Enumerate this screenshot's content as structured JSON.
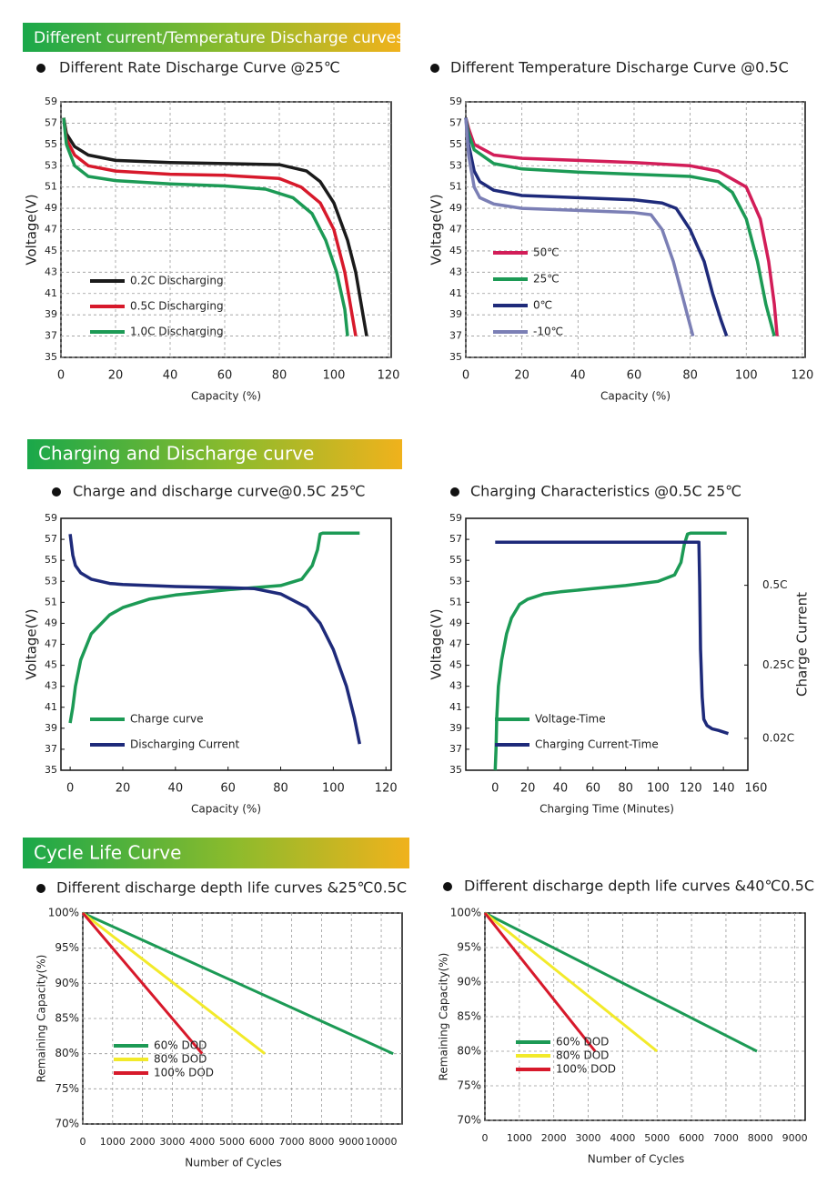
{
  "sections": [
    {
      "title": "Different current/Temperature Discharge curves"
    },
    {
      "title": "Charging and Discharge curve"
    },
    {
      "title": "Cycle Life Curve"
    }
  ],
  "chart_data": [
    {
      "type": "line",
      "title": "Different Rate Discharge Curve @25℃",
      "xlabel": "Capacity  (%)",
      "ylabel": "Voltage(V)",
      "xlim": [
        0,
        121
      ],
      "xticks": [
        0,
        20,
        40,
        60,
        80,
        100,
        120
      ],
      "ylim": [
        35,
        59
      ],
      "yticks": [
        35,
        37,
        39,
        41,
        43,
        45,
        47,
        49,
        51,
        53,
        55,
        57,
        59
      ],
      "grid": true,
      "legend": "lower left",
      "series": [
        {
          "name": "0.2C Discharging",
          "color": "#1a1a1a",
          "x": [
            1,
            2,
            5,
            10,
            20,
            40,
            60,
            80,
            90,
            95,
            100,
            105,
            108,
            110,
            112
          ],
          "values": [
            57.5,
            56,
            54.8,
            54,
            53.5,
            53.3,
            53.2,
            53.1,
            52.5,
            51.5,
            49.5,
            46,
            43,
            40,
            37
          ]
        },
        {
          "name": "0.5C Discharging",
          "color": "#d7192b",
          "x": [
            1,
            2,
            5,
            10,
            20,
            40,
            60,
            80,
            88,
            95,
            100,
            104,
            106,
            108
          ],
          "values": [
            57.5,
            55.5,
            54,
            53,
            52.5,
            52.2,
            52.1,
            51.8,
            51,
            49.5,
            47,
            43,
            40,
            37
          ]
        },
        {
          "name": "1.0C Discharging",
          "color": "#1c9a55",
          "x": [
            1,
            2,
            5,
            10,
            20,
            40,
            60,
            75,
            85,
            92,
            97,
            101,
            104,
            105
          ],
          "values": [
            57.5,
            55,
            53,
            52,
            51.6,
            51.3,
            51.1,
            50.8,
            50,
            48.5,
            46,
            43,
            39.5,
            37
          ]
        }
      ]
    },
    {
      "type": "line",
      "title": "Different Temperature Discharge Curve @0.5C",
      "xlabel": "Capacity  (%)",
      "ylabel": "Voltage(V)",
      "xlim": [
        0,
        121
      ],
      "xticks": [
        0,
        20,
        40,
        60,
        80,
        100,
        120
      ],
      "ylim": [
        35,
        59
      ],
      "yticks": [
        35,
        37,
        39,
        41,
        43,
        45,
        47,
        49,
        51,
        53,
        55,
        57,
        59
      ],
      "grid": true,
      "legend": "lower left",
      "series": [
        {
          "name": "50℃",
          "color": "#d21d58",
          "x": [
            0,
            1,
            3,
            10,
            20,
            40,
            60,
            80,
            90,
            100,
            105,
            108,
            110,
            111
          ],
          "values": [
            57.5,
            56.5,
            55,
            54,
            53.7,
            53.5,
            53.3,
            53,
            52.5,
            51,
            48,
            44,
            40,
            37
          ]
        },
        {
          "name": "25℃",
          "color": "#1c9a55",
          "x": [
            0,
            1,
            3,
            10,
            20,
            40,
            60,
            80,
            90,
            95,
            100,
            104,
            107,
            110
          ],
          "values": [
            57.5,
            56,
            54.5,
            53.2,
            52.7,
            52.4,
            52.2,
            52,
            51.5,
            50.5,
            48,
            44,
            40,
            37
          ]
        },
        {
          "name": "0℃",
          "color": "#1e2a7a",
          "x": [
            0,
            1,
            3,
            5,
            10,
            20,
            40,
            60,
            70,
            75,
            80,
            85,
            88,
            91,
            93
          ],
          "values": [
            57.5,
            55,
            52.5,
            51.5,
            50.7,
            50.2,
            50,
            49.8,
            49.5,
            49,
            47,
            44,
            41,
            38.5,
            37
          ]
        },
        {
          "name": "-10℃",
          "color": "#7b7fb5",
          "x": [
            0,
            1,
            3,
            5,
            10,
            20,
            40,
            60,
            66,
            70,
            74,
            77,
            79,
            81
          ],
          "values": [
            57.5,
            54,
            51,
            50,
            49.4,
            49,
            48.8,
            48.6,
            48.4,
            47,
            44,
            41,
            39,
            37
          ]
        }
      ]
    },
    {
      "type": "line",
      "title": "Charge and discharge curve@0.5C 25℃",
      "xlabel": "Capacity  (%)",
      "ylabel": "Voltage(V)",
      "xlim": [
        -3.5,
        122
      ],
      "xticks": [
        0,
        20,
        40,
        60,
        80,
        100,
        120
      ],
      "ylim": [
        35,
        59
      ],
      "yticks": [
        35,
        37,
        39,
        41,
        43,
        45,
        47,
        49,
        51,
        53,
        55,
        57,
        59
      ],
      "grid": false,
      "legend": "lower left",
      "series": [
        {
          "name": "Charge curve",
          "color": "#1c9a55",
          "x": [
            0,
            1,
            2,
            4,
            8,
            15,
            20,
            30,
            40,
            60,
            80,
            88,
            92,
            94,
            95,
            96,
            100,
            110
          ],
          "values": [
            39.5,
            41,
            43,
            45.5,
            48,
            49.8,
            50.5,
            51.3,
            51.7,
            52.2,
            52.6,
            53.2,
            54.5,
            56,
            57.5,
            57.6,
            57.6,
            57.6
          ]
        },
        {
          "name": "Discharging Current",
          "color": "#1e2a7a",
          "x": [
            0,
            1,
            2,
            4,
            8,
            15,
            20,
            30,
            40,
            60,
            70,
            80,
            90,
            95,
            100,
            105,
            108,
            110
          ],
          "values": [
            57.5,
            55.5,
            54.5,
            53.8,
            53.2,
            52.8,
            52.7,
            52.6,
            52.5,
            52.4,
            52.3,
            51.8,
            50.5,
            49,
            46.5,
            43,
            40,
            37.5
          ]
        }
      ]
    },
    {
      "type": "line",
      "title": "Charging Characteristics @0.5C 25℃",
      "xlabel": "Charging Time (Minutes)",
      "ylabel": "Voltage(V)",
      "y2label": "Charge Current",
      "xlim": [
        -18,
        155
      ],
      "xticks": [
        0,
        20,
        40,
        60,
        80,
        100,
        120,
        140,
        160
      ],
      "ylim": [
        35,
        59
      ],
      "yticks": [
        35,
        37,
        39,
        41,
        43,
        45,
        47,
        49,
        51,
        53,
        55,
        57,
        59
      ],
      "y2lim": [
        -0.08,
        0.71
      ],
      "y2ticks": [
        {
          "value": 0.5,
          "label": "0.5C"
        },
        {
          "value": 0.25,
          "label": "0.25C"
        },
        {
          "value": 0.02,
          "label": "0.02C"
        }
      ],
      "grid": false,
      "legend": "lower left",
      "series": [
        {
          "name": "Voltage-Time",
          "color": "#1c9a55",
          "x": [
            0,
            0.5,
            1,
            2,
            4,
            7,
            10,
            15,
            20,
            30,
            40,
            60,
            80,
            100,
            110,
            114,
            116,
            118,
            120,
            130,
            140,
            142
          ],
          "values": [
            35,
            37,
            40,
            43,
            45.5,
            48,
            49.5,
            50.8,
            51.3,
            51.8,
            52,
            52.3,
            52.6,
            53,
            53.6,
            54.8,
            56.5,
            57.5,
            57.6,
            57.6,
            57.6,
            57.6
          ]
        },
        {
          "name": "Charging Current-Time",
          "color": "#1e2a7a",
          "axis": "y2",
          "x": [
            0,
            125,
            125.5,
            126,
            127,
            128,
            130,
            133,
            137,
            140,
            143
          ],
          "values": [
            0.635,
            0.635,
            0.5,
            0.3,
            0.15,
            0.08,
            0.06,
            0.05,
            0.045,
            0.04,
            0.035
          ]
        }
      ]
    },
    {
      "type": "line",
      "title": "Different discharge depth life curves &25℃0.5C",
      "xlabel": "Number of Cycles",
      "ylabel": "Remaining Capacity(%)",
      "xlim": [
        0,
        10700
      ],
      "xticks": [
        0,
        1000,
        2000,
        3000,
        4000,
        5000,
        6000,
        7000,
        8000,
        9000,
        10000
      ],
      "ylim": [
        70,
        100
      ],
      "yticks": [
        {
          "value": 70,
          "label": "70%"
        },
        {
          "value": 75,
          "label": "75%"
        },
        {
          "value": 80,
          "label": "80%"
        },
        {
          "value": 85,
          "label": "85%"
        },
        {
          "value": 90,
          "label": "90%"
        },
        {
          "value": 95,
          "label": "95%"
        },
        {
          "value": 100,
          "label": "100%"
        }
      ],
      "grid": true,
      "legend": "lower left",
      "series": [
        {
          "name": "60% DOD",
          "color": "#1c9a55",
          "x": [
            0,
            10400
          ],
          "values": [
            100,
            80
          ]
        },
        {
          "name": "80% DOD",
          "color": "#f2ea2a",
          "x": [
            0,
            6100
          ],
          "values": [
            100,
            80
          ]
        },
        {
          "name": "100% DOD",
          "color": "#d7192b",
          "x": [
            0,
            4000
          ],
          "values": [
            100,
            80
          ]
        }
      ]
    },
    {
      "type": "line",
      "title": "Different discharge depth life curves &40℃0.5C",
      "xlabel": "Number of Cycles",
      "ylabel": "Remaining Capacity(%)",
      "xlim": [
        0,
        9300
      ],
      "xticks": [
        0,
        1000,
        2000,
        3000,
        4000,
        5000,
        6000,
        7000,
        8000,
        9000
      ],
      "ylim": [
        70,
        100
      ],
      "yticks": [
        {
          "value": 70,
          "label": "70%"
        },
        {
          "value": 75,
          "label": "75%"
        },
        {
          "value": 80,
          "label": "80%"
        },
        {
          "value": 85,
          "label": "85%"
        },
        {
          "value": 90,
          "label": "90%"
        },
        {
          "value": 95,
          "label": "95%"
        },
        {
          "value": 100,
          "label": "100%"
        }
      ],
      "grid": true,
      "legend": "lower left",
      "series": [
        {
          "name": "60% DOD",
          "color": "#1c9a55",
          "x": [
            0,
            7900
          ],
          "values": [
            100,
            80
          ]
        },
        {
          "name": "80% DOD",
          "color": "#f2ea2a",
          "x": [
            0,
            5000
          ],
          "values": [
            100,
            80
          ]
        },
        {
          "name": "100% DOD",
          "color": "#d7192b",
          "x": [
            0,
            3200
          ],
          "values": [
            100,
            80
          ]
        }
      ]
    }
  ]
}
